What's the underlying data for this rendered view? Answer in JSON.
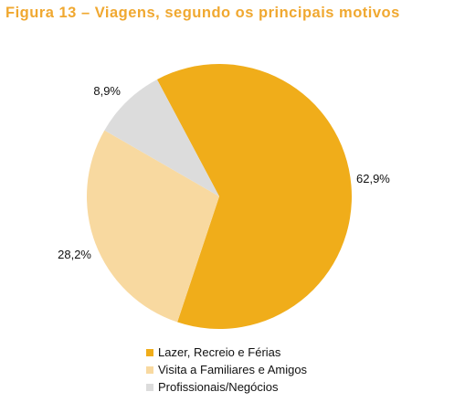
{
  "title": "Figura 13 – Viagens, segundo os principais motivos",
  "colors": {
    "title": "#F0A830"
  },
  "chart_data": {
    "type": "pie",
    "title": "Figura 13 – Viagens, segundo os principais motivos",
    "slices": [
      {
        "label": "Lazer, Recreio e Férias",
        "value": 62.9,
        "value_label": "62,9%",
        "color": "#F0AD1A"
      },
      {
        "label": "Visita a Familiares e Amigos",
        "value": 28.2,
        "value_label": "28,2%",
        "color": "#F8D9A0"
      },
      {
        "label": "Profissionais/Negócios",
        "value": 8.9,
        "value_label": "8,9%",
        "color": "#DCDCDC"
      }
    ],
    "legend_position": "bottom"
  }
}
